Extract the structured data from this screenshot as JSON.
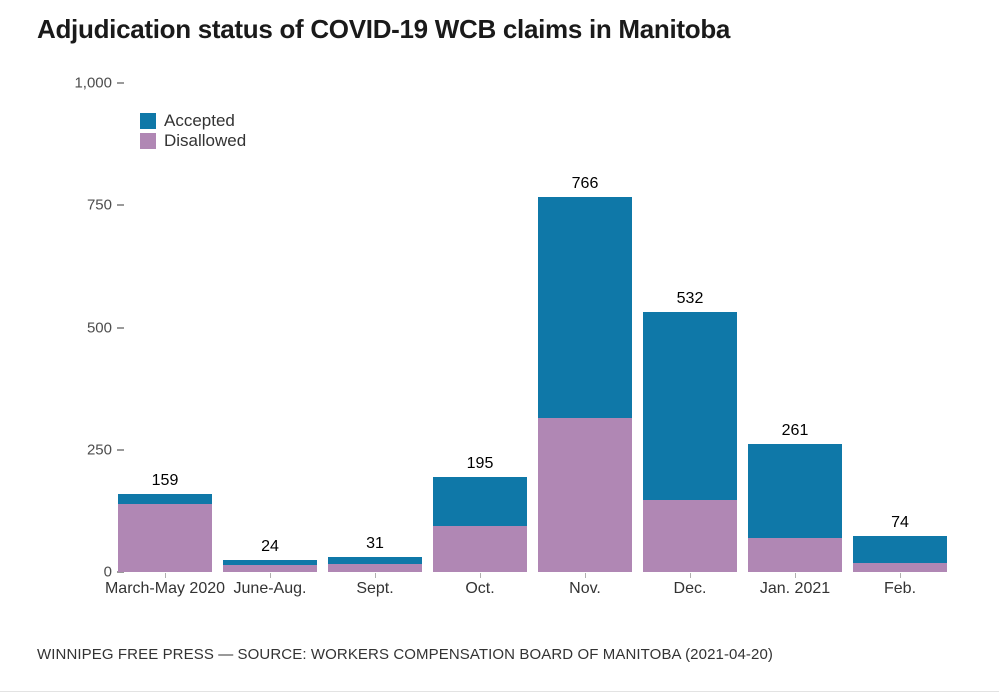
{
  "title": "Adjudication status of COVID-19 WCB claims in Manitoba",
  "footer": "WINNIPEG FREE PRESS — SOURCE: WORKERS COMPENSATION BOARD OF MANITOBA (2021-04-20)",
  "colors": {
    "accepted": "#0f78a8",
    "disallowed": "#b087b4",
    "title_text": "#1a1a1a",
    "axis_text": "#4d4d4d",
    "category_text": "#333333",
    "tick_mark": "#9a9a9a"
  },
  "legend": {
    "items": [
      {
        "label": "Accepted",
        "color": "#0f78a8"
      },
      {
        "label": "Disallowed",
        "color": "#b087b4"
      }
    ]
  },
  "chart_data": {
    "type": "bar",
    "stacked": true,
    "title": "Adjudication status of COVID-19 WCB claims in Manitoba",
    "categories": [
      "March-May 2020",
      "June-Aug.",
      "Sept.",
      "Oct.",
      "Nov.",
      "Dec.",
      "Jan. 2021",
      "Feb."
    ],
    "series": [
      {
        "name": "Accepted",
        "color": "#0f78a8",
        "values": [
          19,
          10,
          14,
          100,
          451,
          385,
          191,
          55
        ]
      },
      {
        "name": "Disallowed",
        "color": "#b087b4",
        "values": [
          140,
          14,
          17,
          95,
          315,
          147,
          70,
          19
        ]
      }
    ],
    "totals": [
      159,
      24,
      31,
      195,
      766,
      532,
      261,
      74
    ],
    "total_labels": [
      "159",
      "24",
      "31",
      "195",
      "766",
      "532",
      "261",
      "74"
    ],
    "ylim": [
      0,
      1000
    ],
    "y_ticks": [
      {
        "value": 0,
        "label": "0"
      },
      {
        "value": 250,
        "label": "250"
      },
      {
        "value": 500,
        "label": "500"
      },
      {
        "value": 750,
        "label": "750"
      },
      {
        "value": 1000,
        "label": "1,000"
      }
    ],
    "grid": false,
    "legend_position": "top-left"
  }
}
